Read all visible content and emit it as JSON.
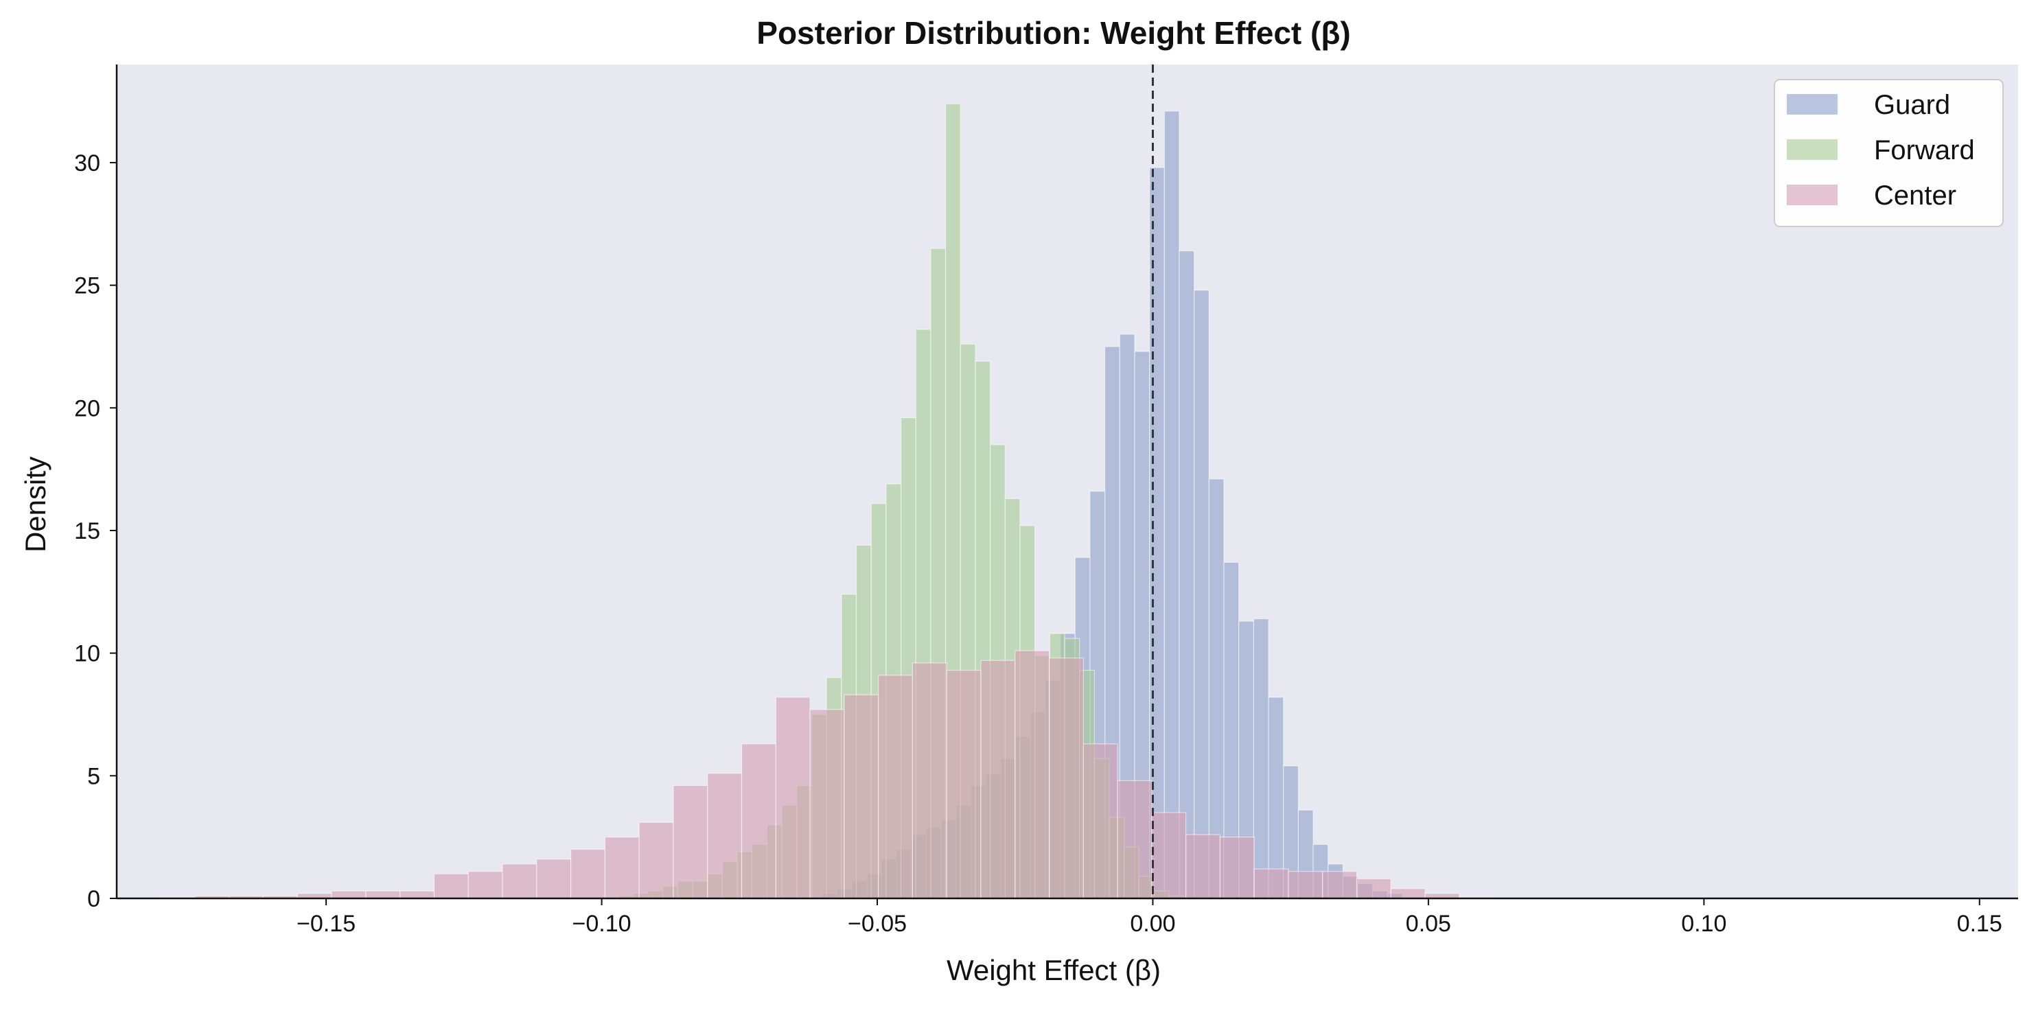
{
  "chart_data": {
    "type": "histogram",
    "title": "Posterior Distribution: Weight Effect (β)",
    "xlabel": "Weight Effect (β)",
    "ylabel": "Density",
    "xlim": [
      -0.188,
      0.157
    ],
    "ylim": [
      0,
      34
    ],
    "x_ticks": [
      {
        "v": -0.15,
        "label": "−0.15"
      },
      {
        "v": -0.1,
        "label": "−0.10"
      },
      {
        "v": -0.05,
        "label": "−0.05"
      },
      {
        "v": 0.0,
        "label": "0.00"
      },
      {
        "v": 0.05,
        "label": "0.05"
      },
      {
        "v": 0.1,
        "label": "0.10"
      },
      {
        "v": 0.15,
        "label": "0.15"
      }
    ],
    "y_ticks": [
      {
        "v": 0,
        "label": "0"
      },
      {
        "v": 5,
        "label": "5"
      },
      {
        "v": 10,
        "label": "10"
      },
      {
        "v": 15,
        "label": "15"
      },
      {
        "v": 20,
        "label": "20"
      },
      {
        "v": 25,
        "label": "25"
      },
      {
        "v": 30,
        "label": "30"
      }
    ],
    "reference_line": {
      "x": 0.0,
      "style": "dashed",
      "color": "#333333"
    },
    "grid": false,
    "legend": {
      "placement": "top-right",
      "entries": [
        "Guard",
        "Forward",
        "Center"
      ]
    },
    "background_color": "#e8e8f0",
    "series": [
      {
        "name": "Guard",
        "color": "#8da0cb",
        "bin_start": -0.06,
        "bin_width": 0.0027,
        "values": [
          0.2,
          0.4,
          0.7,
          1.0,
          1.6,
          2.0,
          2.6,
          2.9,
          3.2,
          3.8,
          4.6,
          5.1,
          5.7,
          6.6,
          7.6,
          8.9,
          10.8,
          13.9,
          16.6,
          22.5,
          23.0,
          22.3,
          29.8,
          32.1,
          26.4,
          24.8,
          17.1,
          13.7,
          11.3,
          11.4,
          8.2,
          5.4,
          3.6,
          2.2,
          1.4,
          0.9,
          0.6,
          0.3,
          0.2
        ]
      },
      {
        "name": "Forward",
        "color": "#a6cc94",
        "bin_start": -0.097,
        "bin_width": 0.0027,
        "values": [
          0.1,
          0.2,
          0.3,
          0.5,
          0.7,
          0.7,
          1.0,
          1.5,
          1.9,
          2.2,
          3.0,
          3.8,
          4.6,
          7.5,
          9.0,
          12.4,
          14.4,
          16.1,
          16.9,
          19.6,
          23.2,
          26.5,
          32.4,
          22.6,
          21.9,
          18.5,
          16.3,
          15.2,
          9.9,
          10.8,
          10.6,
          9.3,
          5.7,
          3.3,
          2.1,
          0.9,
          0.3,
          0.1
        ]
      },
      {
        "name": "Center",
        "color": "#d39eb0",
        "bin_start": -0.18,
        "bin_width": 0.0062,
        "values": [
          0.05,
          0.1,
          0.1,
          0.1,
          0.2,
          0.3,
          0.3,
          0.3,
          1.0,
          1.1,
          1.4,
          1.6,
          2.0,
          2.5,
          3.1,
          4.6,
          5.1,
          6.3,
          8.2,
          7.7,
          8.3,
          9.1,
          9.6,
          9.3,
          9.7,
          10.1,
          9.8,
          6.3,
          4.8,
          3.5,
          2.6,
          2.5,
          1.2,
          1.1,
          1.1,
          0.8,
          0.4,
          0.2,
          0.05
        ]
      }
    ]
  }
}
